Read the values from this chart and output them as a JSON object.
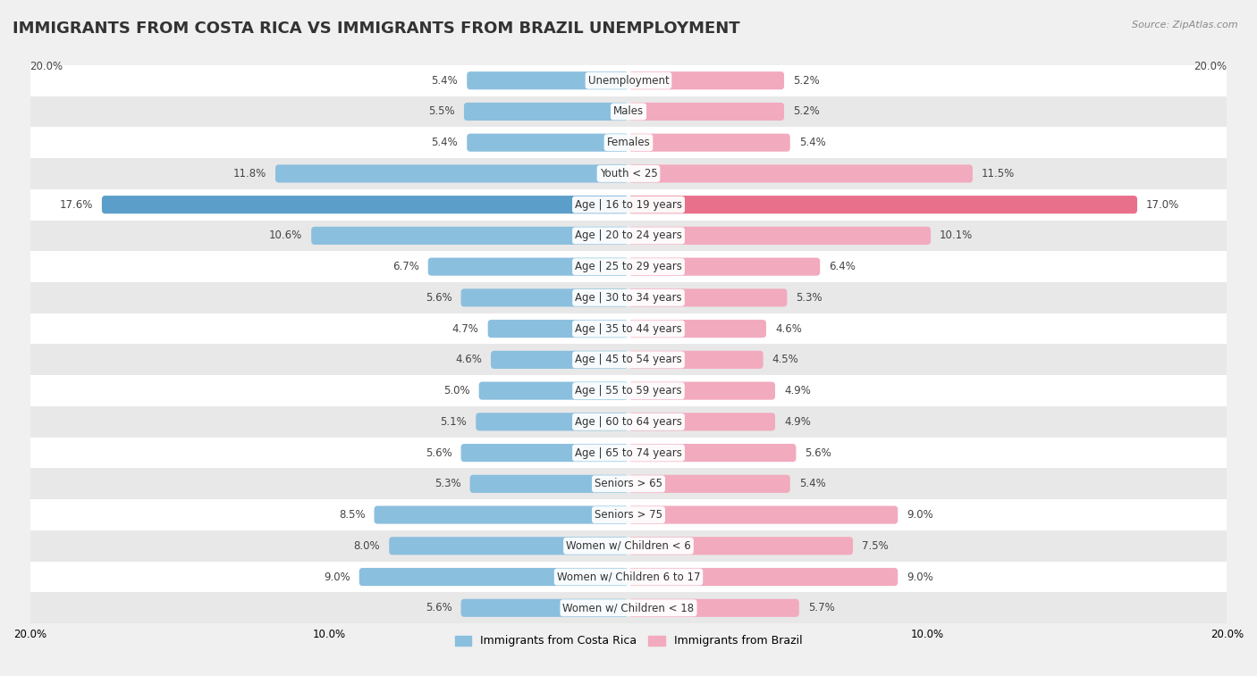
{
  "title": "IMMIGRANTS FROM COSTA RICA VS IMMIGRANTS FROM BRAZIL UNEMPLOYMENT",
  "source": "Source: ZipAtlas.com",
  "categories": [
    "Unemployment",
    "Males",
    "Females",
    "Youth < 25",
    "Age | 16 to 19 years",
    "Age | 20 to 24 years",
    "Age | 25 to 29 years",
    "Age | 30 to 34 years",
    "Age | 35 to 44 years",
    "Age | 45 to 54 years",
    "Age | 55 to 59 years",
    "Age | 60 to 64 years",
    "Age | 65 to 74 years",
    "Seniors > 65",
    "Seniors > 75",
    "Women w/ Children < 6",
    "Women w/ Children 6 to 17",
    "Women w/ Children < 18"
  ],
  "costa_rica": [
    5.4,
    5.5,
    5.4,
    11.8,
    17.6,
    10.6,
    6.7,
    5.6,
    4.7,
    4.6,
    5.0,
    5.1,
    5.6,
    5.3,
    8.5,
    8.0,
    9.0,
    5.6
  ],
  "brazil": [
    5.2,
    5.2,
    5.4,
    11.5,
    17.0,
    10.1,
    6.4,
    5.3,
    4.6,
    4.5,
    4.9,
    4.9,
    5.6,
    5.4,
    9.0,
    7.5,
    9.0,
    5.7
  ],
  "costa_rica_color": "#8bbfde",
  "brazil_color": "#f2aabe",
  "highlight_costa_rica_color": "#5b9ec9",
  "highlight_brazil_color": "#e8708a",
  "axis_max": 20.0,
  "bar_height": 0.58,
  "background_color": "#f0f0f0",
  "row_even_color": "#ffffff",
  "row_odd_color": "#e8e8e8",
  "title_fontsize": 13,
  "label_fontsize": 8.5,
  "value_fontsize": 8.5,
  "legend_fontsize": 9
}
